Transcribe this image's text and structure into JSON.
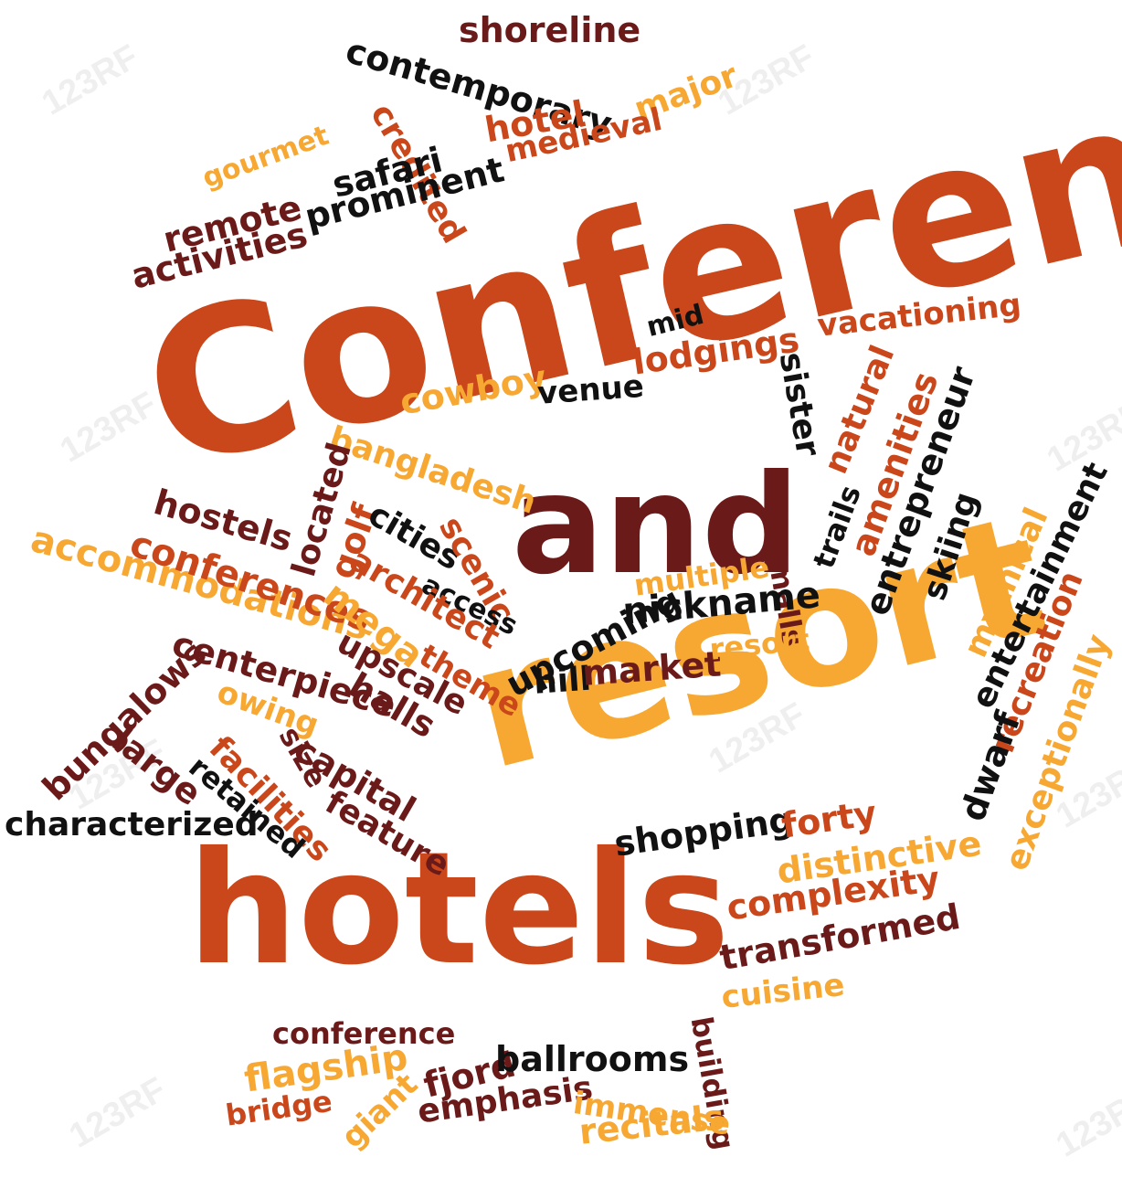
{
  "colors": {
    "background": "#ffffff",
    "orange": "#c9471a",
    "gold": "#f7a832",
    "maroon": "#6b1a1a",
    "black": "#111111",
    "watermark": "#b4b4b4"
  },
  "watermark_text": "123RF",
  "words": [
    {
      "name": "word-conference-large",
      "text": "Conference",
      "color": "orange"
    },
    {
      "name": "word-and",
      "text": "and",
      "color": "maroon"
    },
    {
      "name": "word-resort-large",
      "text": "resort",
      "color": "gold"
    },
    {
      "name": "word-hotels-large",
      "text": "hotels",
      "color": "orange"
    },
    {
      "name": "word-shoreline",
      "text": "shoreline",
      "color": "maroon"
    },
    {
      "name": "word-contemporary",
      "text": "contemporary",
      "color": "black"
    },
    {
      "name": "word-credited",
      "text": "credited",
      "color": "orange"
    },
    {
      "name": "word-hotel",
      "text": "hotel",
      "color": "orange"
    },
    {
      "name": "word-major",
      "text": "major",
      "color": "gold"
    },
    {
      "name": "word-medieval",
      "text": "medieval",
      "color": "orange"
    },
    {
      "name": "word-safari",
      "text": "safari",
      "color": "black"
    },
    {
      "name": "word-gourmet",
      "text": "gourmet",
      "color": "gold"
    },
    {
      "name": "word-prominent",
      "text": "prominent",
      "color": "black"
    },
    {
      "name": "word-remote",
      "text": "remote",
      "color": "maroon"
    },
    {
      "name": "word-activities",
      "text": "activities",
      "color": "maroon"
    },
    {
      "name": "word-mid",
      "text": "mid",
      "color": "black"
    },
    {
      "name": "word-vacationing",
      "text": "vacationing",
      "color": "orange"
    },
    {
      "name": "word-lodgings",
      "text": "lodgings",
      "color": "orange"
    },
    {
      "name": "word-sister",
      "text": "sister",
      "color": "black"
    },
    {
      "name": "word-cowboy",
      "text": "cowboy",
      "color": "gold"
    },
    {
      "name": "word-venue",
      "text": "venue",
      "color": "black"
    },
    {
      "name": "word-bangladesh",
      "text": "bangladesh",
      "color": "gold"
    },
    {
      "name": "word-natural",
      "text": "natural",
      "color": "orange"
    },
    {
      "name": "word-amenities",
      "text": "amenities",
      "color": "orange"
    },
    {
      "name": "word-entrepreneur",
      "text": "entrepreneur",
      "color": "black"
    },
    {
      "name": "word-trails",
      "text": "trails",
      "color": "black"
    },
    {
      "name": "word-skiing",
      "text": "skiing",
      "color": "black"
    },
    {
      "name": "word-mythical",
      "text": "mythical",
      "color": "gold"
    },
    {
      "name": "word-entertainment",
      "text": "entertainment",
      "color": "black"
    },
    {
      "name": "word-hostels",
      "text": "hostels",
      "color": "maroon"
    },
    {
      "name": "word-located",
      "text": "located",
      "color": "maroon"
    },
    {
      "name": "word-golf",
      "text": "golf",
      "color": "orange"
    },
    {
      "name": "word-cities",
      "text": "cities",
      "color": "black"
    },
    {
      "name": "word-scenic",
      "text": "scenic",
      "color": "orange"
    },
    {
      "name": "word-access",
      "text": "access",
      "color": "black"
    },
    {
      "name": "word-accommodations",
      "text": "accommodations",
      "color": "gold"
    },
    {
      "name": "word-conferences",
      "text": "conferences",
      "color": "orange"
    },
    {
      "name": "word-mega",
      "text": "mega",
      "color": "gold"
    },
    {
      "name": "word-architect",
      "text": "architect",
      "color": "orange"
    },
    {
      "name": "word-multiple",
      "text": "multiple",
      "color": "gold"
    },
    {
      "name": "word-upcoming",
      "text": "upcoming",
      "color": "black"
    },
    {
      "name": "word-malls",
      "text": "malls",
      "color": "maroon"
    },
    {
      "name": "word-nickname",
      "text": "nickname",
      "color": "black"
    },
    {
      "name": "word-recreation",
      "text": "recreation",
      "color": "orange"
    },
    {
      "name": "word-exceptionally",
      "text": "exceptionally",
      "color": "gold"
    },
    {
      "name": "word-centerpiece",
      "text": "centerpiece",
      "color": "maroon"
    },
    {
      "name": "word-upscale",
      "text": "upscale",
      "color": "maroon"
    },
    {
      "name": "word-theme",
      "text": "theme",
      "color": "orange"
    },
    {
      "name": "word-hill",
      "text": "hill",
      "color": "black"
    },
    {
      "name": "word-market",
      "text": "market",
      "color": "maroon"
    },
    {
      "name": "word-resort-small",
      "text": "resort",
      "color": "gold"
    },
    {
      "name": "word-bungalows",
      "text": "bungalows",
      "color": "maroon"
    },
    {
      "name": "word-owing",
      "text": "owing",
      "color": "gold"
    },
    {
      "name": "word-halls",
      "text": "halls",
      "color": "maroon"
    },
    {
      "name": "word-size",
      "text": "size",
      "color": "maroon"
    },
    {
      "name": "word-capital",
      "text": "capital",
      "color": "maroon"
    },
    {
      "name": "word-large",
      "text": "large",
      "color": "maroon"
    },
    {
      "name": "word-facilities",
      "text": "facilities",
      "color": "orange"
    },
    {
      "name": "word-retained",
      "text": "retained",
      "color": "black"
    },
    {
      "name": "word-feature",
      "text": "feature",
      "color": "maroon"
    },
    {
      "name": "word-dwarf",
      "text": "dwarf",
      "color": "black"
    },
    {
      "name": "word-characterized",
      "text": "characterized",
      "color": "black"
    },
    {
      "name": "word-shopping",
      "text": "shopping",
      "color": "black"
    },
    {
      "name": "word-forty",
      "text": "forty",
      "color": "orange"
    },
    {
      "name": "word-distinctive",
      "text": "distinctive",
      "color": "gold"
    },
    {
      "name": "word-complexity",
      "text": "complexity",
      "color": "orange"
    },
    {
      "name": "word-transformed",
      "text": "transformed",
      "color": "maroon"
    },
    {
      "name": "word-cuisine",
      "text": "cuisine",
      "color": "gold"
    },
    {
      "name": "word-building",
      "text": "building",
      "color": "maroon"
    },
    {
      "name": "word-conference-small",
      "text": "conference",
      "color": "maroon"
    },
    {
      "name": "word-flagship",
      "text": "flagship",
      "color": "gold"
    },
    {
      "name": "word-fjord",
      "text": "fjord",
      "color": "maroon"
    },
    {
      "name": "word-ballrooms",
      "text": "ballrooms",
      "color": "black"
    },
    {
      "name": "word-bridge",
      "text": "bridge",
      "color": "orange"
    },
    {
      "name": "word-emphasis",
      "text": "emphasis",
      "color": "maroon"
    },
    {
      "name": "word-immense",
      "text": "immense",
      "color": "gold"
    },
    {
      "name": "word-giant",
      "text": "giant",
      "color": "gold"
    },
    {
      "name": "word-recitals",
      "text": "recitals",
      "color": "gold"
    }
  ]
}
